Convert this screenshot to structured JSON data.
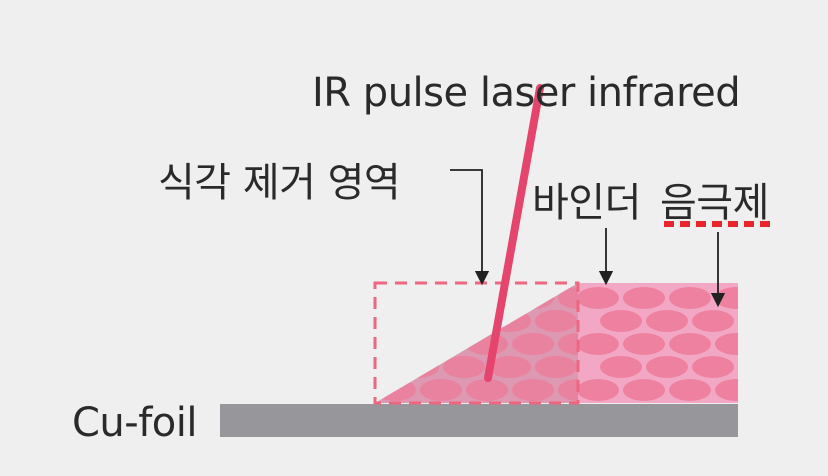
{
  "labels": {
    "laser": "IR pulse laser infrared",
    "etch_region": "식각 제거 영역",
    "binder": "바인더",
    "anode_material": "음극제",
    "cu_foil": "Cu-foil"
  },
  "colors": {
    "background": "#efefef",
    "foil": "#97979b",
    "coating_fill": "#f2a8c4",
    "particle": "#ee7797",
    "etched_fill": "#d88aa6",
    "laser": "#e5446d",
    "dashed_box": "#ee6680",
    "anode_underline": "#e8242d",
    "arrow": "#222222",
    "text": "#2a2a2a"
  }
}
